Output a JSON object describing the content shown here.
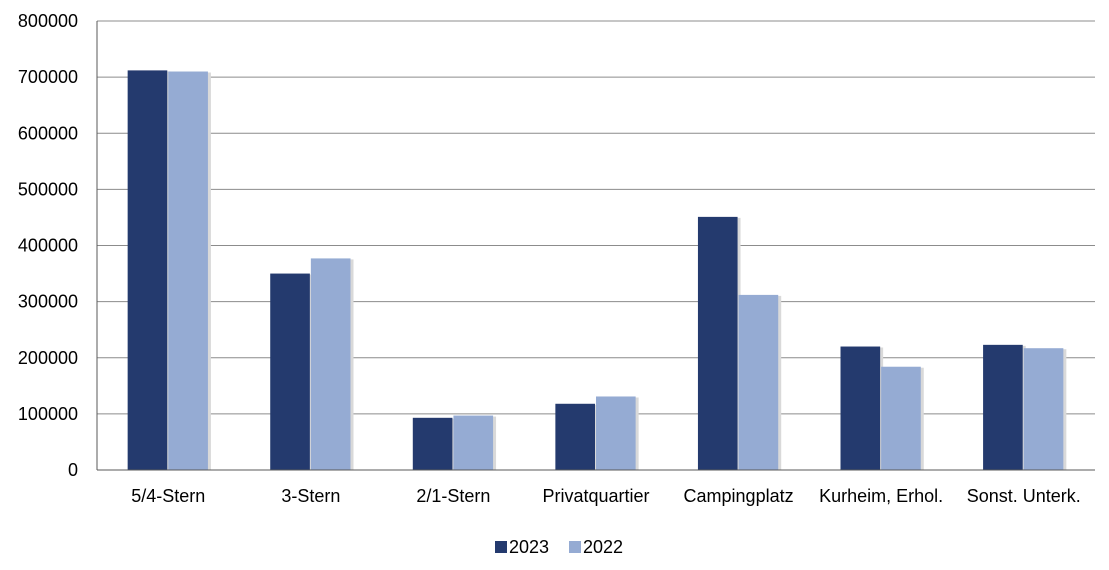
{
  "chart_data": {
    "type": "bar",
    "title": "",
    "xlabel": "",
    "ylabel": "",
    "categories": [
      "5/4-Stern",
      "3-Stern",
      "2/1-Stern",
      "Privatquartier",
      "Campingplatz",
      "Kurheim, Erhol.",
      "Sonst. Unterk."
    ],
    "series": [
      {
        "name": "2023",
        "color": "#243a6e",
        "values": [
          712000,
          350000,
          93000,
          118000,
          451000,
          220000,
          223000
        ]
      },
      {
        "name": "2022",
        "color": "#95abd3",
        "values": [
          710000,
          377000,
          97000,
          131000,
          312000,
          184000,
          217000
        ]
      }
    ],
    "ylim": [
      0,
      800000
    ],
    "yticks": [
      "0",
      "100000",
      "200000",
      "300000",
      "400000",
      "500000",
      "600000",
      "700000",
      "800000"
    ],
    "grid": true,
    "legend_position": "bottom"
  }
}
